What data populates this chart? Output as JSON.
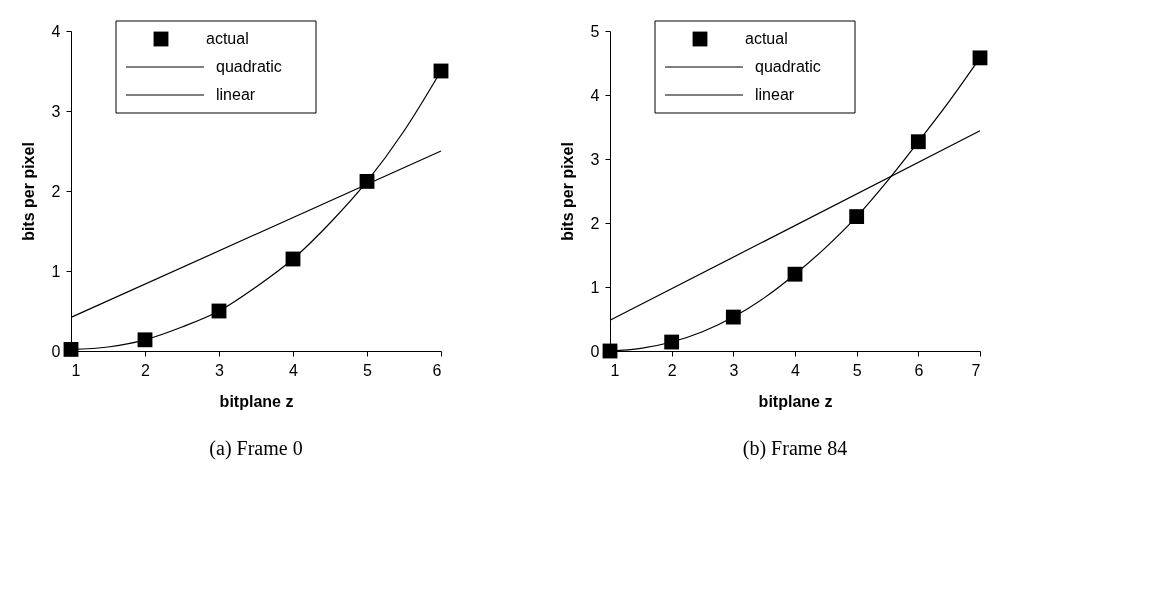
{
  "chart_data": [
    {
      "type": "scatter",
      "title": "(a) Frame 0",
      "xlabel": "bitplane z",
      "ylabel": "bits per pixel",
      "xlim": [
        1,
        6
      ],
      "xticks": [
        1,
        2,
        3,
        4,
        5,
        6
      ],
      "ylim": [
        0,
        4
      ],
      "yticks": [
        0,
        1,
        2,
        3,
        4
      ],
      "grid": false,
      "legend": "top",
      "series": [
        {
          "name": "actual",
          "marker": "square",
          "color": "#000000",
          "x": [
            1,
            2,
            3,
            4,
            5,
            6
          ],
          "values": [
            0.02,
            0.14,
            0.5,
            1.15,
            2.12,
            3.5
          ]
        },
        {
          "name": "quadratic",
          "type": "line",
          "color": "#000000",
          "x": [
            1,
            1.5,
            2,
            2.5,
            3,
            3.5,
            4,
            4.5,
            5,
            5.5,
            6
          ],
          "values": [
            0.02,
            0.05,
            0.14,
            0.3,
            0.5,
            0.8,
            1.15,
            1.6,
            2.12,
            2.75,
            3.5
          ]
        },
        {
          "name": "linear",
          "type": "line",
          "color": "#000000",
          "x": [
            1,
            6
          ],
          "values": [
            0.42,
            2.5
          ]
        }
      ]
    },
    {
      "type": "scatter",
      "title": "(b) Frame 84",
      "xlabel": "bitplane z",
      "ylabel": "bits per pixel",
      "xlim": [
        1,
        7
      ],
      "xticks": [
        1,
        2,
        3,
        4,
        5,
        6,
        7
      ],
      "ylim": [
        0,
        5
      ],
      "yticks": [
        0,
        1,
        2,
        3,
        4,
        5
      ],
      "grid": false,
      "legend": "top",
      "series": [
        {
          "name": "actual",
          "marker": "square",
          "color": "#000000",
          "x": [
            1,
            2,
            3,
            4,
            5,
            6,
            7
          ],
          "values": [
            0.0,
            0.14,
            0.53,
            1.2,
            2.1,
            3.27,
            4.58
          ]
        },
        {
          "name": "quadratic",
          "type": "line",
          "color": "#000000",
          "x": [
            1,
            1.5,
            2,
            2.5,
            3,
            3.5,
            4,
            4.5,
            5,
            5.5,
            6,
            6.5,
            7
          ],
          "values": [
            0.0,
            0.04,
            0.14,
            0.3,
            0.53,
            0.83,
            1.2,
            1.62,
            2.1,
            2.66,
            3.27,
            3.9,
            4.58
          ]
        },
        {
          "name": "linear",
          "type": "line",
          "color": "#000000",
          "x": [
            1,
            7
          ],
          "values": [
            0.48,
            3.44
          ]
        }
      ]
    }
  ]
}
